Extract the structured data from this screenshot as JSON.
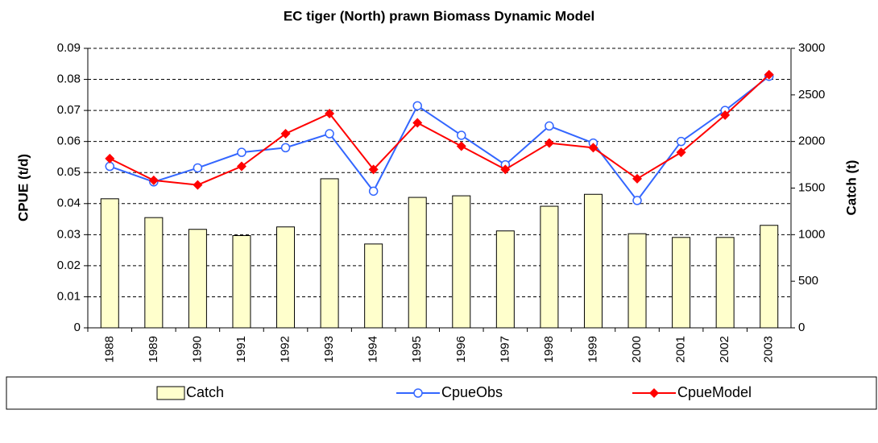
{
  "chart_data": {
    "type": "bar-line",
    "title": "EC tiger (North) prawn Biomass Dynamic Model",
    "y_label": "CPUE (t/d)",
    "y2_label": "Catch (t)",
    "categories": [
      "1988",
      "1989",
      "1990",
      "1991",
      "1992",
      "1993",
      "1994",
      "1995",
      "1996",
      "1997",
      "1998",
      "1999",
      "2000",
      "2001",
      "2002",
      "2003"
    ],
    "series": [
      {
        "name": "Catch",
        "type": "bar",
        "axis": "y2",
        "color": "#ffffcc",
        "values": [
          1385,
          1183,
          1057,
          990,
          1083,
          1600,
          900,
          1400,
          1417,
          1040,
          1305,
          1433,
          1010,
          970,
          970,
          1100
        ]
      },
      {
        "name": "CpueObs",
        "type": "line",
        "marker": "circle",
        "color": "#3366ff",
        "values": [
          0.052,
          0.047,
          0.0515,
          0.0565,
          0.058,
          0.0625,
          0.044,
          0.0715,
          0.062,
          0.0525,
          0.065,
          0.0595,
          0.041,
          0.06,
          0.07,
          0.081
        ]
      },
      {
        "name": "CpueModel",
        "type": "line",
        "marker": "diamond",
        "color": "#ff0000",
        "values": [
          0.0545,
          0.0475,
          0.046,
          0.052,
          0.0625,
          0.069,
          0.051,
          0.066,
          0.0585,
          0.051,
          0.0595,
          0.058,
          0.048,
          0.0565,
          0.0685,
          0.0815
        ]
      }
    ],
    "ylim": [
      0,
      0.09
    ],
    "yticks": [
      0,
      0.01,
      0.02,
      0.03,
      0.04,
      0.05,
      0.06,
      0.07,
      0.08,
      0.09
    ],
    "y2lim": [
      0,
      3000
    ],
    "y2ticks": [
      0,
      500,
      1000,
      1500,
      2000,
      2500,
      3000
    ],
    "grid": true,
    "legend": "bottom"
  }
}
